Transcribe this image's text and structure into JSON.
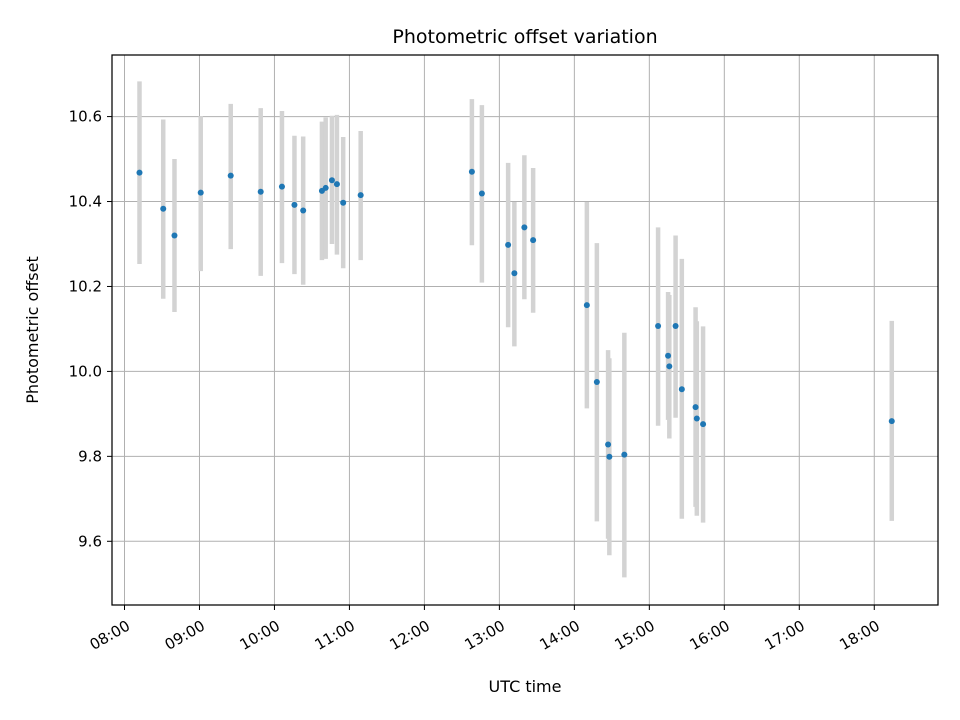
{
  "chart_data": {
    "type": "scatter",
    "title": "Photometric offset variation",
    "xlabel": "UTC time",
    "ylabel": "Photometric offset",
    "x_is_time": true,
    "xlim": [
      "07:50",
      "18:51"
    ],
    "ylim": [
      9.45,
      10.745
    ],
    "x_ticks": [
      "08:00",
      "09:00",
      "10:00",
      "11:00",
      "12:00",
      "13:00",
      "14:00",
      "15:00",
      "16:00",
      "17:00",
      "18:00"
    ],
    "y_ticks": [
      "9.6",
      "9.8",
      "10.0",
      "10.2",
      "10.4",
      "10.6"
    ],
    "grid": true,
    "point_color": "#1f77b4",
    "errorbar_color": "#d3d3d3",
    "points": [
      {
        "x": "08:12",
        "y": 10.468,
        "ylo": 10.253,
        "yhi": 10.683
      },
      {
        "x": "08:31",
        "y": 10.383,
        "ylo": 10.171,
        "yhi": 10.593
      },
      {
        "x": "08:40",
        "y": 10.32,
        "ylo": 10.14,
        "yhi": 10.5
      },
      {
        "x": "09:01",
        "y": 10.421,
        "ylo": 10.236,
        "yhi": 10.601
      },
      {
        "x": "09:25",
        "y": 10.461,
        "ylo": 10.288,
        "yhi": 10.63
      },
      {
        "x": "09:49",
        "y": 10.423,
        "ylo": 10.225,
        "yhi": 10.62
      },
      {
        "x": "10:06",
        "y": 10.435,
        "ylo": 10.255,
        "yhi": 10.613
      },
      {
        "x": "10:16",
        "y": 10.392,
        "ylo": 10.229,
        "yhi": 10.555
      },
      {
        "x": "10:23",
        "y": 10.379,
        "ylo": 10.204,
        "yhi": 10.553
      },
      {
        "x": "10:38",
        "y": 10.425,
        "ylo": 10.262,
        "yhi": 10.588
      },
      {
        "x": "10:41",
        "y": 10.432,
        "ylo": 10.265,
        "yhi": 10.598
      },
      {
        "x": "10:46",
        "y": 10.45,
        "ylo": 10.3,
        "yhi": 10.602
      },
      {
        "x": "10:50",
        "y": 10.441,
        "ylo": 10.275,
        "yhi": 10.604
      },
      {
        "x": "10:55",
        "y": 10.397,
        "ylo": 10.243,
        "yhi": 10.552
      },
      {
        "x": "11:09",
        "y": 10.415,
        "ylo": 10.262,
        "yhi": 10.566
      },
      {
        "x": "12:38",
        "y": 10.47,
        "ylo": 10.297,
        "yhi": 10.641
      },
      {
        "x": "12:46",
        "y": 10.419,
        "ylo": 10.209,
        "yhi": 10.627
      },
      {
        "x": "13:07",
        "y": 10.298,
        "ylo": 10.104,
        "yhi": 10.491
      },
      {
        "x": "13:12",
        "y": 10.231,
        "ylo": 10.059,
        "yhi": 10.399
      },
      {
        "x": "13:20",
        "y": 10.339,
        "ylo": 10.17,
        "yhi": 10.509
      },
      {
        "x": "13:27",
        "y": 10.309,
        "ylo": 10.138,
        "yhi": 10.479
      },
      {
        "x": "14:10",
        "y": 10.156,
        "ylo": 9.913,
        "yhi": 10.399
      },
      {
        "x": "14:18",
        "y": 9.975,
        "ylo": 9.647,
        "yhi": 10.302
      },
      {
        "x": "14:27",
        "y": 9.828,
        "ylo": 9.606,
        "yhi": 10.05
      },
      {
        "x": "14:28",
        "y": 9.799,
        "ylo": 9.567,
        "yhi": 10.031
      },
      {
        "x": "14:40",
        "y": 9.804,
        "ylo": 9.515,
        "yhi": 10.091
      },
      {
        "x": "15:07",
        "y": 10.107,
        "ylo": 9.872,
        "yhi": 10.339
      },
      {
        "x": "15:15",
        "y": 10.037,
        "ylo": 9.886,
        "yhi": 10.187
      },
      {
        "x": "15:16",
        "y": 10.012,
        "ylo": 9.842,
        "yhi": 10.18
      },
      {
        "x": "15:21",
        "y": 10.107,
        "ylo": 9.891,
        "yhi": 10.32
      },
      {
        "x": "15:26",
        "y": 9.958,
        "ylo": 9.653,
        "yhi": 10.265
      },
      {
        "x": "15:37",
        "y": 9.916,
        "ylo": 9.681,
        "yhi": 10.151
      },
      {
        "x": "15:38",
        "y": 9.889,
        "ylo": 9.66,
        "yhi": 10.118
      },
      {
        "x": "15:43",
        "y": 9.876,
        "ylo": 9.644,
        "yhi": 10.106
      },
      {
        "x": "18:14",
        "y": 9.883,
        "ylo": 9.648,
        "yhi": 10.119
      }
    ]
  }
}
